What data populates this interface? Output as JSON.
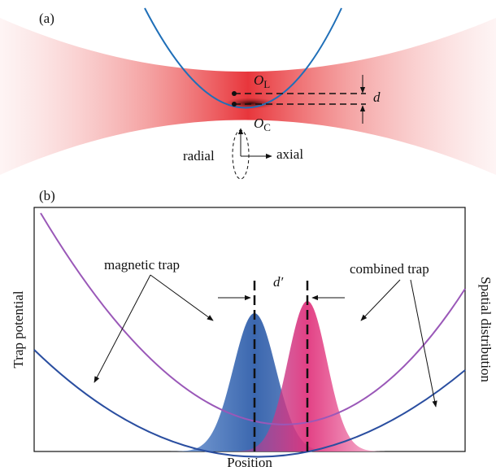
{
  "panel_a": {
    "label": "(a)",
    "o_l": {
      "symbol": "O",
      "subscript": "L"
    },
    "o_c": {
      "symbol": "O",
      "subscript": "C"
    },
    "separation": "d",
    "radial": "radial",
    "axial": "axial"
  },
  "panel_b": {
    "label": "(b)",
    "magnetic_trap": "magnetic trap",
    "combined_trap": "combined trap",
    "separation": "d′",
    "y_label_left": "Trap potential",
    "y_label_right": "Spatial distribution",
    "x_label": "Position"
  }
}
